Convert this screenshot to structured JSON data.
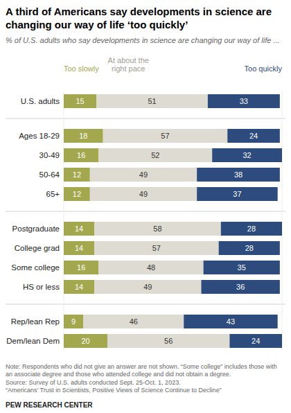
{
  "chart_data": {
    "type": "bar",
    "orientation": "horizontal",
    "stacked": true,
    "data_labels": true,
    "tick_labels": false,
    "title": "A third of Americans say developments in science are changing our way of life ‘too quickly’",
    "subtitle": "% of U.S. adults who say developments in science are changing our way of life ...",
    "categories": [
      "U.S. adults",
      "Ages 18-29",
      "30-49",
      "50-64",
      "65+",
      "Postgraduate",
      "College grad",
      "Some college",
      "HS or less",
      "Rep/lean Rep",
      "Dem/lean Dem"
    ],
    "category_groups": [
      0,
      1,
      1,
      1,
      1,
      2,
      2,
      2,
      2,
      3,
      3
    ],
    "series": [
      {
        "name": "Too slowly",
        "color": "#a3a84f",
        "values": [
          15,
          18,
          16,
          12,
          12,
          14,
          14,
          16,
          14,
          9,
          20
        ]
      },
      {
        "name": "At about the right pace",
        "color": "#dedbd2",
        "values": [
          51,
          57,
          52,
          49,
          49,
          58,
          57,
          48,
          49,
          46,
          56
        ]
      },
      {
        "name": "Too quickly",
        "color": "#2d4b7d",
        "values": [
          33,
          24,
          32,
          38,
          37,
          28,
          28,
          35,
          36,
          43,
          24
        ]
      }
    ],
    "xlim": [
      0,
      100
    ],
    "annotations": [
      "Note: Respondents who did not give an answer are not shown. “Some college” includes those with an associate degree and those who attended college and did not obtain a degree.",
      "Source: Survey of U.S. adults conducted Sept. 25-Oct. 1, 2023.",
      "“Americans’ Trust in Scientists, Positive Views of Science Continue to Decline”",
      "PEW RESEARCH CENTER"
    ]
  }
}
